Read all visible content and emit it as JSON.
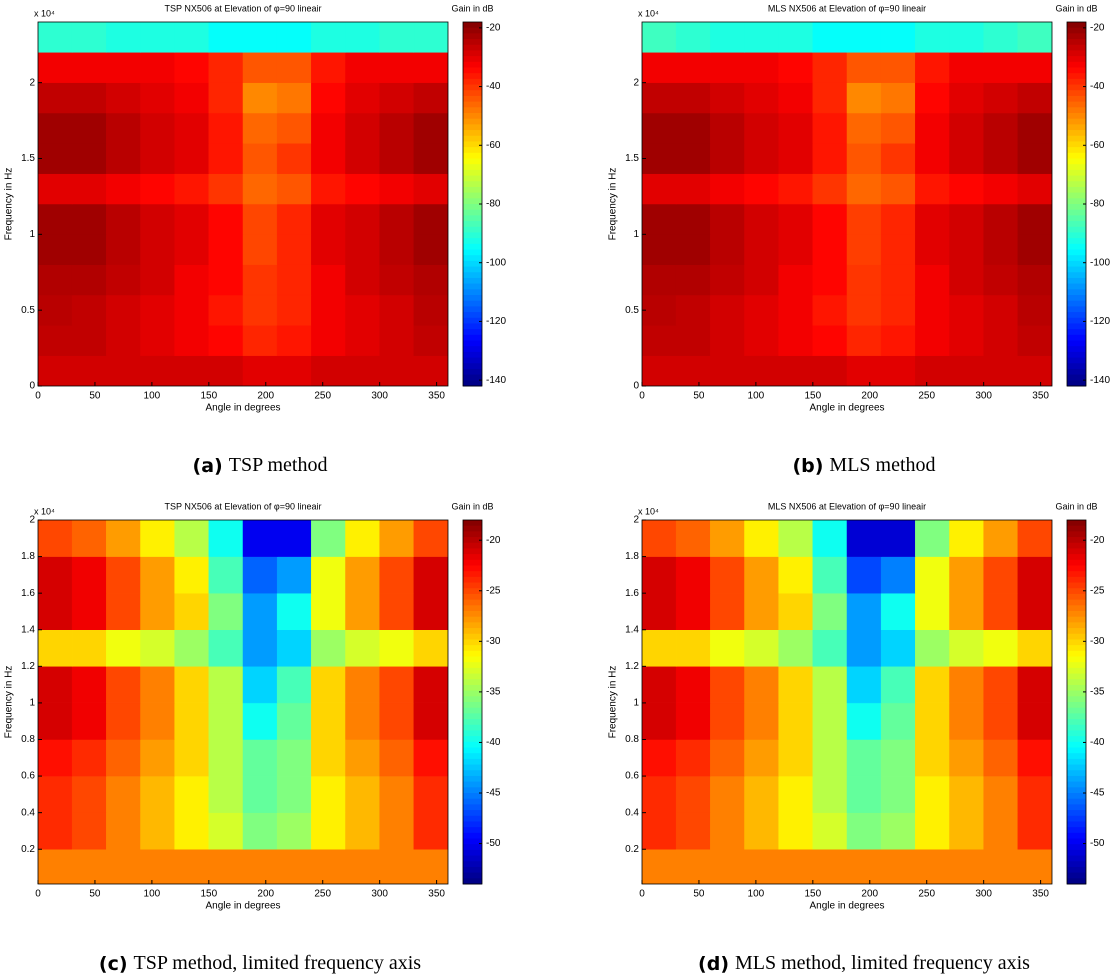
{
  "chart_data": [
    {
      "type": "heatmap",
      "title": "TSP NX506 at Elevation of φ=90 lineair",
      "xlabel": "Angle in degrees",
      "ylabel": "Frequency in Hz",
      "y_multiplier": "x 10⁴",
      "colorbar_label": "Gain in dB",
      "colormap": "jet",
      "caption_label": "(a)",
      "caption": "TSP method",
      "x": [
        15,
        45,
        75,
        105,
        135,
        165,
        195,
        225,
        255,
        285,
        315,
        345
      ],
      "y": [
        1000,
        3000,
        5000,
        7000,
        9000,
        11000,
        13000,
        15000,
        17000,
        19000,
        21000,
        23000
      ],
      "z": [
        [
          -28,
          -28,
          -28,
          -28,
          -28,
          -28,
          -30,
          -30,
          -28,
          -28,
          -28,
          -28
        ],
        [
          -26,
          -26,
          -28,
          -30,
          -32,
          -34,
          -38,
          -36,
          -32,
          -30,
          -28,
          -26
        ],
        [
          -25,
          -26,
          -28,
          -30,
          -32,
          -36,
          -40,
          -38,
          -32,
          -30,
          -28,
          -25
        ],
        [
          -24,
          -24,
          -26,
          -28,
          -32,
          -34,
          -40,
          -38,
          -32,
          -28,
          -26,
          -24
        ],
        [
          -22,
          -22,
          -25,
          -28,
          -30,
          -34,
          -42,
          -38,
          -30,
          -28,
          -25,
          -22
        ],
        [
          -22,
          -22,
          -25,
          -28,
          -30,
          -34,
          -42,
          -38,
          -30,
          -28,
          -25,
          -22
        ],
        [
          -30,
          -30,
          -32,
          -34,
          -36,
          -40,
          -46,
          -44,
          -36,
          -34,
          -32,
          -30
        ],
        [
          -22,
          -22,
          -25,
          -28,
          -30,
          -36,
          -44,
          -40,
          -32,
          -28,
          -25,
          -22
        ],
        [
          -22,
          -22,
          -25,
          -28,
          -30,
          -36,
          -46,
          -44,
          -32,
          -28,
          -25,
          -22
        ],
        [
          -26,
          -26,
          -28,
          -30,
          -32,
          -38,
          -50,
          -48,
          -34,
          -30,
          -28,
          -26
        ],
        [
          -32,
          -32,
          -32,
          -32,
          -34,
          -38,
          -44,
          -44,
          -36,
          -32,
          -32,
          -32
        ],
        [
          -90,
          -90,
          -92,
          -92,
          -92,
          -95,
          -95,
          -95,
          -92,
          -92,
          -90,
          -90
        ]
      ],
      "xlim": [
        0,
        360
      ],
      "ylim": [
        0,
        24000
      ],
      "xticks": [
        0,
        50,
        100,
        150,
        200,
        250,
        300,
        350
      ],
      "yticks": [
        0,
        {
          "value": 5000,
          "label": "0.5"
        },
        {
          "value": 10000,
          "label": "1"
        },
        {
          "value": 15000,
          "label": "1.5"
        },
        {
          "value": 20000,
          "label": "2"
        }
      ],
      "clim": [
        -142,
        -18
      ],
      "cticks": [
        -20,
        -40,
        -60,
        -80,
        -100,
        -120,
        -140
      ]
    },
    {
      "type": "heatmap",
      "title": "MLS NX506 at Elevation of φ=90 lineair",
      "xlabel": "Angle in degrees",
      "ylabel": "Frequency in Hz",
      "y_multiplier": "x 10⁴",
      "colorbar_label": "Gain in dB",
      "colormap": "jet",
      "caption_label": "(b)",
      "caption": "MLS method",
      "x": [
        15,
        45,
        75,
        105,
        135,
        165,
        195,
        225,
        255,
        285,
        315,
        345
      ],
      "y": [
        1000,
        3000,
        5000,
        7000,
        9000,
        11000,
        13000,
        15000,
        17000,
        19000,
        21000,
        23000
      ],
      "z": [
        [
          -28,
          -28,
          -28,
          -28,
          -28,
          -28,
          -30,
          -30,
          -28,
          -28,
          -28,
          -28
        ],
        [
          -26,
          -26,
          -28,
          -30,
          -32,
          -34,
          -38,
          -36,
          -32,
          -30,
          -28,
          -26
        ],
        [
          -25,
          -26,
          -28,
          -30,
          -32,
          -36,
          -40,
          -38,
          -32,
          -30,
          -28,
          -25
        ],
        [
          -24,
          -24,
          -26,
          -28,
          -32,
          -34,
          -40,
          -38,
          -32,
          -28,
          -26,
          -24
        ],
        [
          -22,
          -22,
          -25,
          -28,
          -30,
          -34,
          -41,
          -38,
          -30,
          -28,
          -25,
          -22
        ],
        [
          -22,
          -22,
          -25,
          -28,
          -30,
          -34,
          -41,
          -38,
          -30,
          -28,
          -25,
          -22
        ],
        [
          -30,
          -30,
          -32,
          -34,
          -36,
          -40,
          -46,
          -44,
          -36,
          -34,
          -32,
          -30
        ],
        [
          -22,
          -22,
          -25,
          -28,
          -30,
          -36,
          -44,
          -40,
          -32,
          -28,
          -25,
          -22
        ],
        [
          -22,
          -22,
          -25,
          -28,
          -30,
          -36,
          -46,
          -44,
          -32,
          -28,
          -25,
          -22
        ],
        [
          -26,
          -26,
          -28,
          -30,
          -32,
          -38,
          -50,
          -48,
          -34,
          -30,
          -28,
          -26
        ],
        [
          -32,
          -32,
          -32,
          -32,
          -34,
          -38,
          -44,
          -44,
          -36,
          -32,
          -32,
          -32
        ],
        [
          -88,
          -90,
          -92,
          -92,
          -92,
          -95,
          -95,
          -95,
          -92,
          -92,
          -90,
          -88
        ]
      ],
      "xlim": [
        0,
        360
      ],
      "ylim": [
        0,
        24000
      ],
      "xticks": [
        0,
        50,
        100,
        150,
        200,
        250,
        300,
        350
      ],
      "yticks": [
        0,
        {
          "value": 5000,
          "label": "0.5"
        },
        {
          "value": 10000,
          "label": "1"
        },
        {
          "value": 15000,
          "label": "1.5"
        },
        {
          "value": 20000,
          "label": "2"
        }
      ],
      "clim": [
        -142,
        -18
      ],
      "cticks": [
        -20,
        -40,
        -60,
        -80,
        -100,
        -120,
        -140
      ]
    },
    {
      "type": "heatmap",
      "title": "TSP NX506 at Elevation of φ=90 lineair",
      "xlabel": "Angle in degrees",
      "ylabel": "Frequency in Hz",
      "y_multiplier": "x 10⁴",
      "colorbar_label": "Gain in dB",
      "colormap": "jet",
      "caption_label": "(c)",
      "caption": "TSP method, limited frequency axis",
      "x": [
        15,
        45,
        75,
        105,
        135,
        165,
        195,
        225,
        255,
        285,
        315,
        345
      ],
      "y": [
        1000,
        3000,
        5000,
        7000,
        9000,
        11000,
        13000,
        15000,
        17000,
        19000
      ],
      "z": [
        [
          -27,
          -27,
          -27,
          -27,
          -27,
          -27,
          -27,
          -27,
          -27,
          -27,
          -27,
          -27
        ],
        [
          -24,
          -25,
          -27,
          -29,
          -31,
          -33,
          -36,
          -35,
          -31,
          -29,
          -27,
          -24
        ],
        [
          -24,
          -25,
          -27,
          -29,
          -31,
          -34,
          -37,
          -36,
          -31,
          -29,
          -27,
          -24
        ],
        [
          -23,
          -24,
          -26,
          -28,
          -30,
          -34,
          -37,
          -36,
          -30,
          -28,
          -26,
          -23
        ],
        [
          -21,
          -22,
          -25,
          -27,
          -30,
          -34,
          -40,
          -37,
          -30,
          -27,
          -25,
          -21
        ],
        [
          -21,
          -22,
          -25,
          -27,
          -30,
          -34,
          -42,
          -38,
          -30,
          -27,
          -25,
          -21
        ],
        [
          -30,
          -30,
          -32,
          -33,
          -35,
          -38,
          -44,
          -42,
          -35,
          -33,
          -32,
          -30
        ],
        [
          -21,
          -22,
          -25,
          -28,
          -30,
          -36,
          -44,
          -40,
          -32,
          -28,
          -25,
          -21
        ],
        [
          -21,
          -22,
          -25,
          -28,
          -31,
          -38,
          -46,
          -44,
          -32,
          -28,
          -25,
          -21
        ],
        [
          -25,
          -26,
          -28,
          -31,
          -34,
          -40,
          -50,
          -50,
          -36,
          -31,
          -28,
          -25
        ]
      ],
      "xlim": [
        0,
        360
      ],
      "ylim": [
        100,
        20000
      ],
      "xticks": [
        0,
        50,
        100,
        150,
        200,
        250,
        300,
        350
      ],
      "yticks": [
        {
          "value": 2000,
          "label": "0.2"
        },
        {
          "value": 4000,
          "label": "0.4"
        },
        {
          "value": 6000,
          "label": "0.6"
        },
        {
          "value": 8000,
          "label": "0.8"
        },
        {
          "value": 10000,
          "label": "1"
        },
        {
          "value": 12000,
          "label": "1.2"
        },
        {
          "value": 14000,
          "label": "1.4"
        },
        {
          "value": 16000,
          "label": "1.6"
        },
        {
          "value": 18000,
          "label": "1.8"
        },
        {
          "value": 20000,
          "label": "2"
        }
      ],
      "clim": [
        -54,
        -18
      ],
      "cticks": [
        -20,
        -25,
        -30,
        -35,
        -40,
        -45,
        -50
      ]
    },
    {
      "type": "heatmap",
      "title": "MLS NX506 at Elevation of φ=90 lineair",
      "xlabel": "Angle in degrees",
      "ylabel": "Frequency in Hz",
      "y_multiplier": "x 10⁴",
      "colorbar_label": "Gain in dB",
      "colormap": "jet",
      "caption_label": "(d)",
      "caption": "MLS method, limited frequency axis",
      "x": [
        15,
        45,
        75,
        105,
        135,
        165,
        195,
        225,
        255,
        285,
        315,
        345
      ],
      "y": [
        1000,
        3000,
        5000,
        7000,
        9000,
        11000,
        13000,
        15000,
        17000,
        19000
      ],
      "z": [
        [
          -27,
          -27,
          -27,
          -27,
          -27,
          -27,
          -27,
          -27,
          -27,
          -27,
          -27,
          -27
        ],
        [
          -24,
          -25,
          -27,
          -29,
          -31,
          -33,
          -36,
          -35,
          -31,
          -29,
          -27,
          -24
        ],
        [
          -24,
          -25,
          -27,
          -29,
          -31,
          -34,
          -37,
          -36,
          -31,
          -29,
          -27,
          -24
        ],
        [
          -23,
          -24,
          -26,
          -28,
          -30,
          -34,
          -37,
          -36,
          -30,
          -28,
          -26,
          -23
        ],
        [
          -21,
          -22,
          -25,
          -27,
          -30,
          -34,
          -40,
          -37,
          -30,
          -27,
          -25,
          -21
        ],
        [
          -21,
          -22,
          -25,
          -27,
          -30,
          -34,
          -42,
          -38,
          -30,
          -27,
          -25,
          -21
        ],
        [
          -30,
          -30,
          -32,
          -33,
          -35,
          -38,
          -44,
          -42,
          -35,
          -33,
          -32,
          -30
        ],
        [
          -21,
          -22,
          -25,
          -28,
          -30,
          -36,
          -44,
          -40,
          -32,
          -28,
          -25,
          -21
        ],
        [
          -21,
          -22,
          -25,
          -28,
          -31,
          -38,
          -47,
          -45,
          -32,
          -28,
          -25,
          -21
        ],
        [
          -25,
          -26,
          -28,
          -31,
          -34,
          -40,
          -51,
          -51,
          -36,
          -31,
          -28,
          -25
        ]
      ],
      "xlim": [
        0,
        360
      ],
      "ylim": [
        100,
        20000
      ],
      "xticks": [
        0,
        50,
        100,
        150,
        200,
        250,
        300,
        350
      ],
      "yticks": [
        {
          "value": 2000,
          "label": "0.2"
        },
        {
          "value": 4000,
          "label": "0.4"
        },
        {
          "value": 6000,
          "label": "0.6"
        },
        {
          "value": 8000,
          "label": "0.8"
        },
        {
          "value": 10000,
          "label": "1"
        },
        {
          "value": 12000,
          "label": "1.2"
        },
        {
          "value": 14000,
          "label": "1.4"
        },
        {
          "value": 16000,
          "label": "1.6"
        },
        {
          "value": 18000,
          "label": "1.8"
        },
        {
          "value": 20000,
          "label": "2"
        }
      ],
      "clim": [
        -54,
        -18
      ],
      "cticks": [
        -20,
        -25,
        -30,
        -35,
        -40,
        -45,
        -50
      ]
    }
  ]
}
